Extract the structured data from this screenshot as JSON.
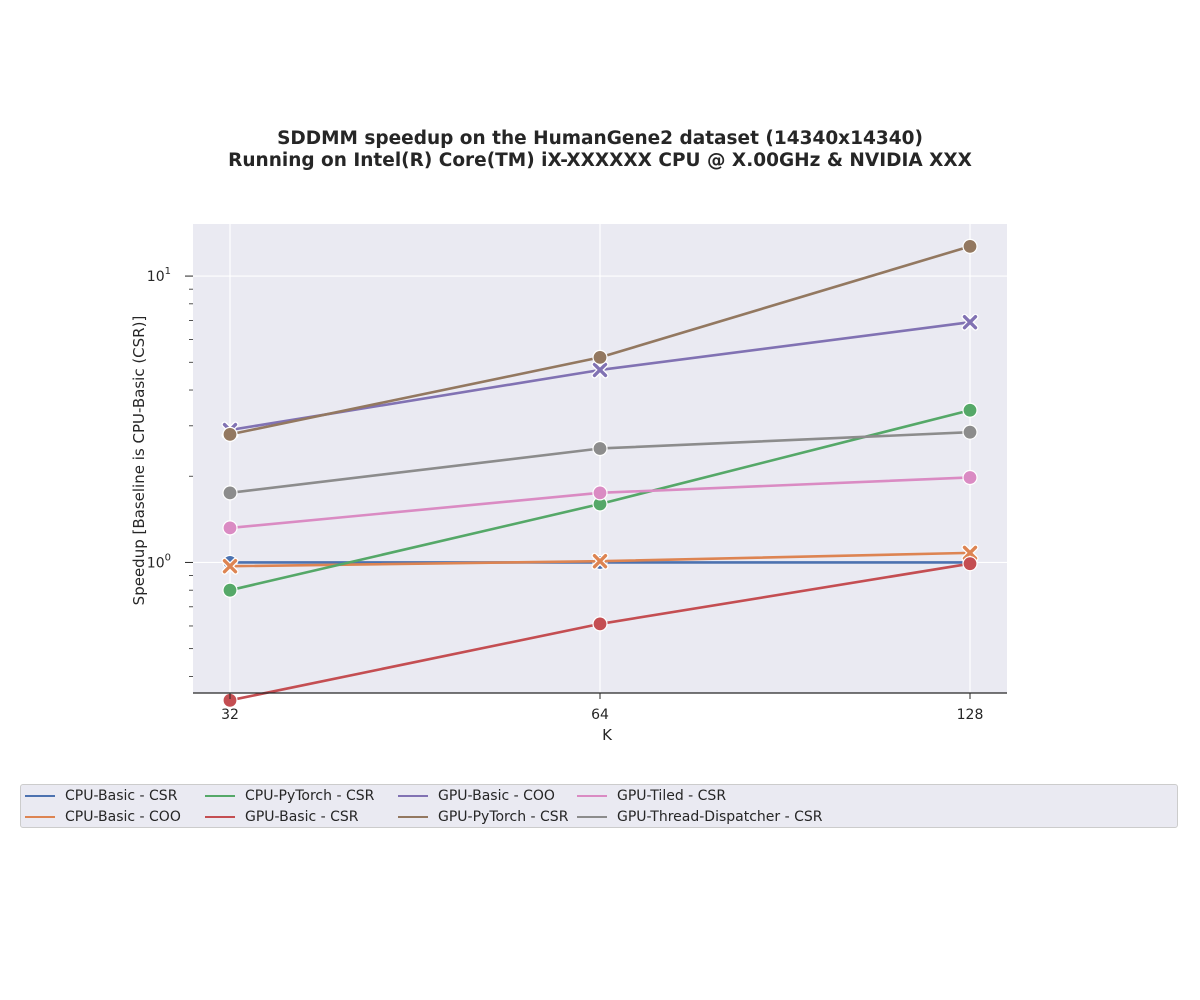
{
  "chart_data": {
    "type": "line",
    "title": [
      "SDDMM speedup on the HumanGene2 dataset (14340x14340)",
      "Running on Intel(R) Core(TM) iX-XXXXXX CPU @ X.00GHz & NVIDIA XXX"
    ],
    "xlabel": "K",
    "ylabel": "Speedup [Baseline is CPU-Basic (CSR)]",
    "x": [
      32,
      64,
      128
    ],
    "x_scale": "log2",
    "y_scale": "log",
    "ylim": [
      0.35,
      15.2
    ],
    "grid": true,
    "legend_position": "bottom",
    "y_major_ticks": [
      {
        "value": 1,
        "base": "10",
        "exp": "0"
      },
      {
        "value": 10,
        "base": "10",
        "exp": "1"
      }
    ],
    "series": [
      {
        "name": "CPU-Basic - CSR",
        "color": "#4c72b0",
        "marker": "circle",
        "values": [
          1.0,
          1.0,
          1.0
        ]
      },
      {
        "name": "CPU-Basic - COO",
        "color": "#dd8452",
        "marker": "x",
        "values": [
          0.97,
          1.01,
          1.08
        ]
      },
      {
        "name": "CPU-PyTorch - CSR",
        "color": "#55a868",
        "marker": "circle",
        "values": [
          0.8,
          1.6,
          3.4
        ]
      },
      {
        "name": "GPU-Basic - CSR",
        "color": "#c44e52",
        "marker": "circle",
        "values": [
          0.33,
          0.61,
          0.99
        ]
      },
      {
        "name": "GPU-Basic - COO",
        "color": "#8172b3",
        "marker": "x",
        "values": [
          2.9,
          4.7,
          6.9
        ]
      },
      {
        "name": "GPU-PyTorch - CSR",
        "color": "#937860",
        "marker": "circle",
        "values": [
          2.8,
          5.2,
          12.7
        ]
      },
      {
        "name": "GPU-Tiled - CSR",
        "color": "#da8bc3",
        "marker": "circle",
        "values": [
          1.32,
          1.75,
          1.98
        ]
      },
      {
        "name": "GPU-Thread-Dispatcher - CSR",
        "color": "#8c8c8c",
        "marker": "circle",
        "values": [
          1.75,
          2.5,
          2.85
        ]
      }
    ]
  }
}
